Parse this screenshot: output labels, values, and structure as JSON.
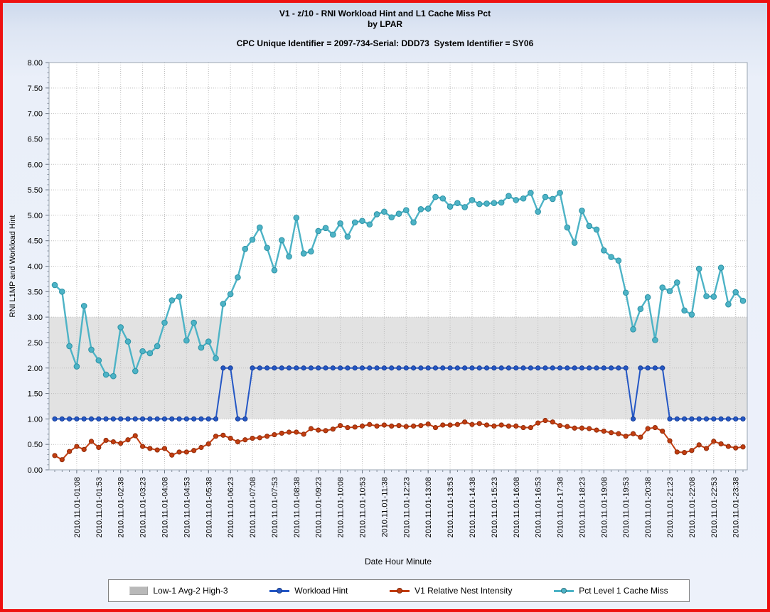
{
  "header": {
    "title_line1": "V1 - z/10 - RNI Workload Hint and L1 Cache Miss Pct",
    "title_line2": "by LPAR",
    "subtitle": "CPC Unique Identifier = 2097-734-Serial: DDD73  System Identifier = SY06"
  },
  "legend": {
    "items": [
      {
        "label": "Low-1 Avg-2 High-3",
        "type": "band",
        "color": "#b9b9b9"
      },
      {
        "label": "Workload Hint",
        "type": "line",
        "color": "#2457c5"
      },
      {
        "label": "V1 Relative Nest Intensity",
        "type": "line",
        "color": "#c23d10"
      },
      {
        "label": "Pct Level 1 Cache Miss",
        "type": "line",
        "color": "#4db3c6"
      }
    ]
  },
  "chart_data": {
    "type": "line",
    "title": "V1 - z/10 - RNI Workload Hint and L1 Cache Miss Pct by LPAR",
    "xlabel": "Date Hour Minute",
    "ylabel": "RNI L1MP and Workload Hint",
    "ylim": [
      0,
      8
    ],
    "y_tick_step": 0.5,
    "grid": true,
    "legend_position": "bottom",
    "band": {
      "label": "Low-1 Avg-2 High-3",
      "low": 1,
      "high": 3,
      "color": "#e2e2e2"
    },
    "x_interval_minutes": 15,
    "n_points": 95,
    "x_times": [
      "00:23",
      "00:38",
      "00:53",
      "01:08",
      "01:23",
      "01:38",
      "01:53",
      "02:08",
      "02:23",
      "02:38",
      "02:53",
      "03:08",
      "03:23",
      "03:38",
      "03:53",
      "04:08",
      "04:23",
      "04:38",
      "04:53",
      "05:08",
      "05:23",
      "05:38",
      "05:53",
      "06:08",
      "06:23",
      "06:38",
      "06:53",
      "07:08",
      "07:23",
      "07:38",
      "07:53",
      "08:08",
      "08:23",
      "08:38",
      "08:53",
      "09:08",
      "09:23",
      "09:38",
      "09:53",
      "10:08",
      "10:23",
      "10:38",
      "10:53",
      "11:08",
      "11:23",
      "11:38",
      "11:53",
      "12:08",
      "12:23",
      "12:38",
      "12:53",
      "13:08",
      "13:23",
      "13:38",
      "13:53",
      "14:08",
      "14:23",
      "14:38",
      "14:53",
      "15:08",
      "15:23",
      "15:38",
      "15:53",
      "16:08",
      "16:23",
      "16:38",
      "16:53",
      "17:08",
      "17:23",
      "17:38",
      "17:53",
      "18:08",
      "18:23",
      "18:38",
      "18:53",
      "19:08",
      "19:23",
      "19:38",
      "19:53",
      "20:08",
      "20:23",
      "20:38",
      "20:53",
      "21:08",
      "21:23",
      "21:38",
      "21:53",
      "22:08",
      "22:23",
      "22:38",
      "22:53",
      "23:08",
      "23:23",
      "23:38",
      "23:53"
    ],
    "x_tick_indices": [
      3,
      6,
      9,
      12,
      15,
      18,
      21,
      24,
      27,
      30,
      33,
      36,
      39,
      42,
      45,
      48,
      51,
      54,
      57,
      60,
      63,
      66,
      69,
      72,
      75,
      78,
      81,
      84,
      87,
      90,
      93
    ],
    "x_tick_labels": [
      "2010.11.01-01:08",
      "2010.11.01-01:53",
      "2010.11.01-02:38",
      "2010.11.01-03:23",
      "2010.11.01-04:08",
      "2010.11.01-04:53",
      "2010.11.01-05:38",
      "2010.11.01-06:23",
      "2010.11.01-07:08",
      "2010.11.01-07:53",
      "2010.11.01-08:38",
      "2010.11.01-09:23",
      "2010.11.01-10:08",
      "2010.11.01-10:53",
      "2010.11.01-11:38",
      "2010.11.01-12:23",
      "2010.11.01-13:08",
      "2010.11.01-13:53",
      "2010.11.01-14:38",
      "2010.11.01-15:23",
      "2010.11.01-16:08",
      "2010.11.01-16:53",
      "2010.11.01-17:38",
      "2010.11.01-18:23",
      "2010.11.01-19:08",
      "2010.11.01-19:53",
      "2010.11.01-20:38",
      "2010.11.01-21:23",
      "2010.11.01-22:08",
      "2010.11.01-22:53",
      "2010.11.01-23:38"
    ],
    "series": [
      {
        "name": "Workload Hint",
        "color": "#2457c5",
        "marker_edge": "#163d96",
        "values": [
          1,
          1,
          1,
          1,
          1,
          1,
          1,
          1,
          1,
          1,
          1,
          1,
          1,
          1,
          1,
          1,
          1,
          1,
          1,
          1,
          1,
          1,
          1,
          2,
          2,
          1,
          1,
          2,
          2,
          2,
          2,
          2,
          2,
          2,
          2,
          2,
          2,
          2,
          2,
          2,
          2,
          2,
          2,
          2,
          2,
          2,
          2,
          2,
          2,
          2,
          2,
          2,
          2,
          2,
          2,
          2,
          2,
          2,
          2,
          2,
          2,
          2,
          2,
          2,
          2,
          2,
          2,
          2,
          2,
          2,
          2,
          2,
          2,
          2,
          2,
          2,
          2,
          2,
          2,
          1,
          2,
          2,
          2,
          2,
          1,
          1,
          1,
          1,
          1,
          1,
          1,
          1,
          1,
          1,
          1
        ]
      },
      {
        "name": "V1 Relative Nest Intensity",
        "color": "#c23d10",
        "marker_edge": "#8f2c0a",
        "values": [
          0.28,
          0.2,
          0.36,
          0.46,
          0.4,
          0.56,
          0.44,
          0.58,
          0.55,
          0.52,
          0.59,
          0.67,
          0.46,
          0.42,
          0.39,
          0.42,
          0.29,
          0.35,
          0.35,
          0.38,
          0.44,
          0.51,
          0.66,
          0.68,
          0.62,
          0.55,
          0.59,
          0.62,
          0.63,
          0.66,
          0.69,
          0.72,
          0.74,
          0.74,
          0.7,
          0.81,
          0.78,
          0.77,
          0.8,
          0.87,
          0.83,
          0.84,
          0.86,
          0.89,
          0.86,
          0.88,
          0.86,
          0.87,
          0.85,
          0.86,
          0.87,
          0.9,
          0.83,
          0.88,
          0.88,
          0.89,
          0.94,
          0.89,
          0.91,
          0.88,
          0.86,
          0.88,
          0.86,
          0.86,
          0.83,
          0.83,
          0.92,
          0.97,
          0.94,
          0.87,
          0.85,
          0.82,
          0.82,
          0.81,
          0.78,
          0.76,
          0.73,
          0.71,
          0.66,
          0.71,
          0.64,
          0.81,
          0.83,
          0.76,
          0.57,
          0.35,
          0.34,
          0.38,
          0.49,
          0.42,
          0.56,
          0.51,
          0.46,
          0.43,
          0.45
        ]
      },
      {
        "name": "Pct Level 1 Cache Miss",
        "color": "#4db3c6",
        "marker_edge": "#2d93a6",
        "values": [
          3.63,
          3.5,
          2.43,
          2.03,
          3.22,
          2.36,
          2.15,
          1.87,
          1.84,
          2.8,
          2.52,
          1.94,
          2.33,
          2.29,
          2.43,
          2.89,
          3.33,
          3.4,
          2.54,
          2.89,
          2.4,
          2.52,
          2.19,
          3.26,
          3.45,
          3.78,
          4.34,
          4.52,
          4.76,
          4.36,
          3.92,
          4.51,
          4.19,
          4.95,
          4.25,
          4.29,
          4.69,
          4.75,
          4.62,
          4.84,
          4.58,
          4.86,
          4.89,
          4.82,
          5.02,
          5.07,
          4.96,
          5.03,
          5.1,
          4.86,
          5.12,
          5.13,
          5.36,
          5.33,
          5.17,
          5.24,
          5.16,
          5.3,
          5.22,
          5.23,
          5.24,
          5.25,
          5.38,
          5.3,
          5.33,
          5.44,
          5.07,
          5.36,
          5.32,
          5.44,
          4.76,
          4.46,
          5.09,
          4.79,
          4.72,
          4.31,
          4.18,
          4.11,
          3.48,
          2.76,
          3.16,
          3.39,
          2.55,
          3.58,
          3.51,
          3.68,
          3.13,
          3.05,
          3.95,
          3.41,
          3.4,
          3.97,
          3.25,
          3.49,
          3.32
        ]
      }
    ],
    "colors": {
      "plot_background": "#ffffff",
      "band": "#e2e2e2",
      "grid": "#bcbcbc",
      "frame": "#9aa5b1",
      "outer_border": "#ee1111"
    }
  }
}
